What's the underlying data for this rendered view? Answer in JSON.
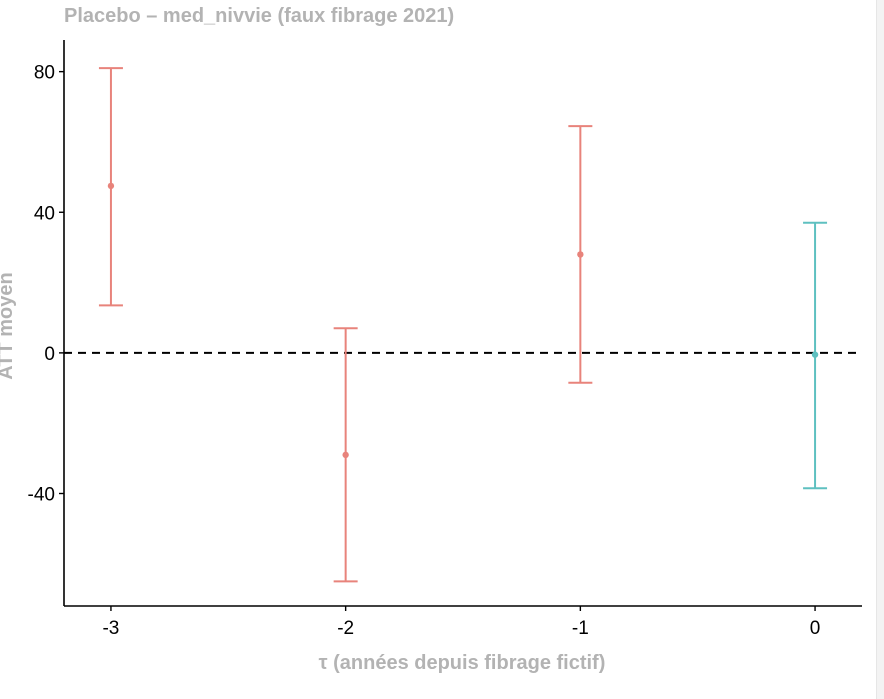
{
  "chart_data": {
    "type": "scatter",
    "title": "Placebo – med_nivvie (faux fibrage 2021)",
    "xlabel": "τ (années depuis fibrage fictif)",
    "ylabel": "ATT moyen",
    "x_ticks": [
      "-3",
      "-2",
      "-1",
      "0"
    ],
    "y_ticks": [
      "80",
      "40",
      "0",
      "-40"
    ],
    "xlim": [
      -3.2,
      0.2
    ],
    "ylim": [
      -72,
      89
    ],
    "grid": false,
    "reference_line": 0,
    "colors": {
      "pre_period": "#e8837b",
      "reference": "#5ec0c0",
      "reference_line": "#000000",
      "axis_title": "#b3b3b3"
    },
    "points": [
      {
        "x": -3,
        "estimate": 47.5,
        "ci_low": 13.5,
        "ci_high": 81.0
      },
      {
        "x": -2,
        "estimate": -29.0,
        "ci_low": -65.0,
        "ci_high": 7.0
      },
      {
        "x": -1,
        "estimate": 28.0,
        "ci_low": -8.5,
        "ci_high": 64.5
      },
      {
        "x": 0,
        "estimate": -0.5,
        "ci_low": -38.5,
        "ci_high": 37.0
      }
    ]
  }
}
